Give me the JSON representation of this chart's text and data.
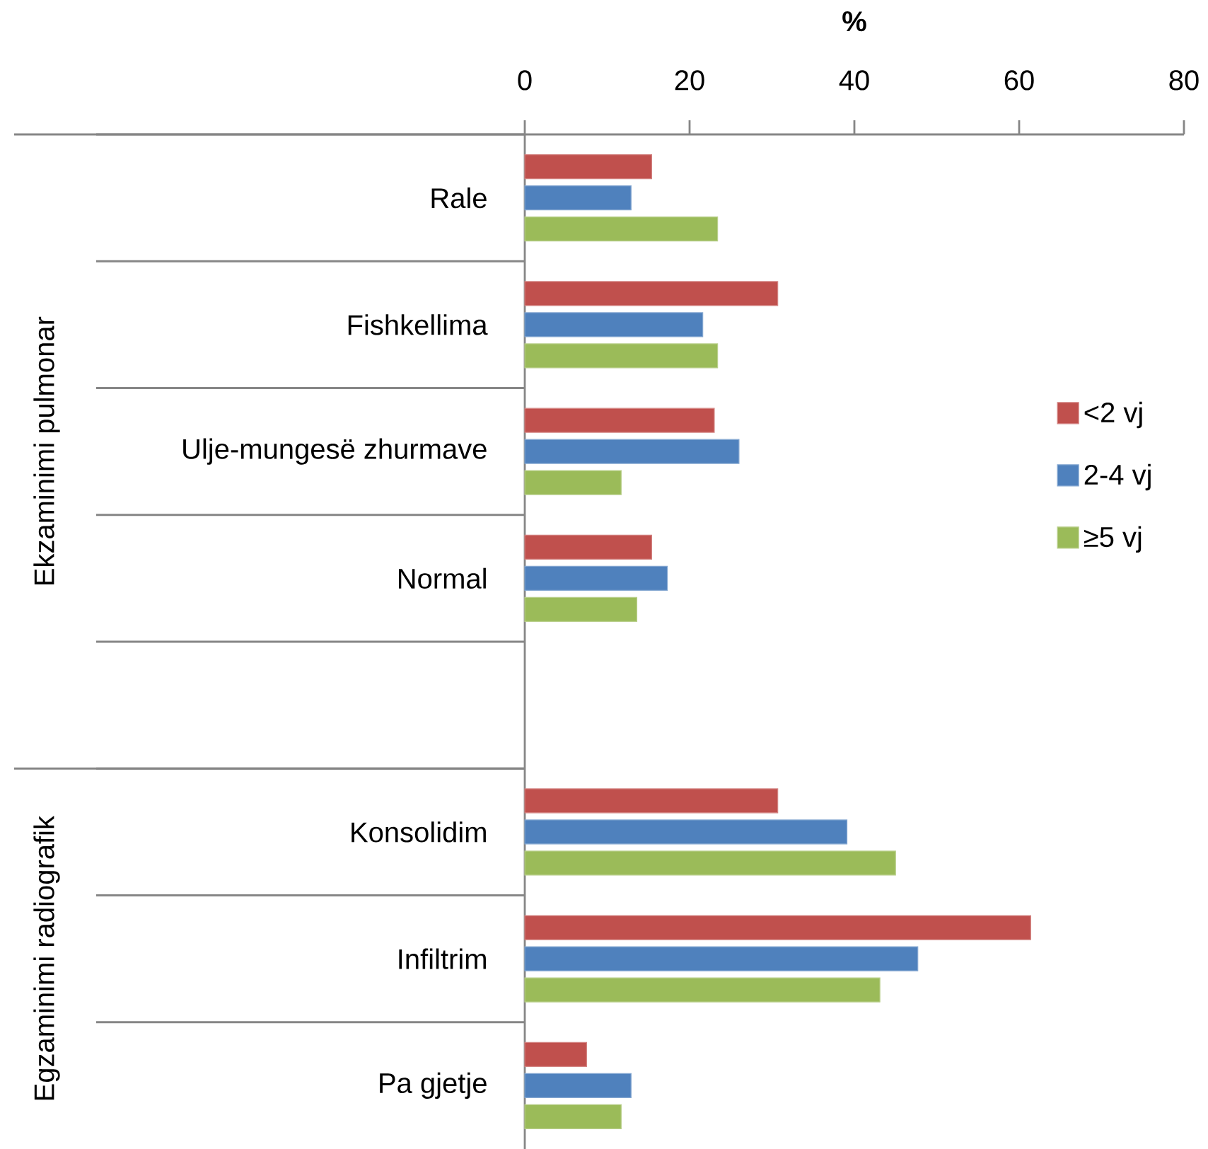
{
  "chart_data": {
    "type": "bar",
    "orientation": "horizontal",
    "xlabel": "%",
    "categories": [
      "Rale",
      "Fishkellima",
      "Ulje-mungesë zhurmave",
      "Normal",
      null,
      "Konsolidim",
      "Infiltrim",
      "Pa gjetje"
    ],
    "series": [
      {
        "name": "<2 vj",
        "color": "#c0504d",
        "values": [
          15.4,
          30.7,
          23.0,
          15.4,
          null,
          30.7,
          61.4,
          7.5
        ]
      },
      {
        "name": "2-4 vj",
        "color": "#4f81bd",
        "values": [
          12.9,
          21.6,
          26.0,
          17.3,
          null,
          39.1,
          47.7,
          12.9
        ]
      },
      {
        "name": "≥5 vj",
        "color": "#9bbb59",
        "values": [
          23.4,
          23.4,
          11.7,
          13.6,
          null,
          45.0,
          43.1,
          11.7
        ]
      }
    ],
    "xlim": [
      0,
      80
    ],
    "xticks": [
      0,
      20,
      40,
      60,
      80
    ],
    "legend": "right",
    "annotations": [
      "Ekzaminimi pulmonar",
      "Egzaminimi radiografik"
    ]
  }
}
